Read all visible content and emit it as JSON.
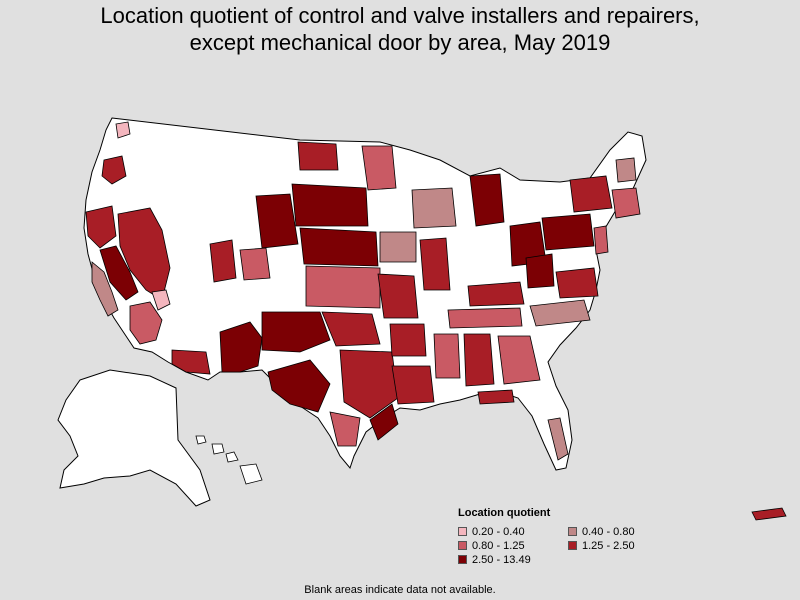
{
  "title": {
    "line1": "Location quotient of control and valve installers and repairers,",
    "line2": "except mechanical door by area, May 2019"
  },
  "legend": {
    "title": "Location quotient",
    "items": [
      {
        "label": "0.20 - 0.40",
        "color": "#f4b6be"
      },
      {
        "label": "0.40 - 0.80",
        "color": "#c08888"
      },
      {
        "label": "0.80 - 1.25",
        "color": "#c95a64"
      },
      {
        "label": "1.25 - 2.50",
        "color": "#a81e26"
      },
      {
        "label": "2.50 - 13.49",
        "color": "#7c0004"
      }
    ]
  },
  "footnote": "Blank areas indicate data not available.",
  "colors": {
    "background": "#e0e0e0",
    "no_data": "#ffffff",
    "border": "#000000"
  }
}
